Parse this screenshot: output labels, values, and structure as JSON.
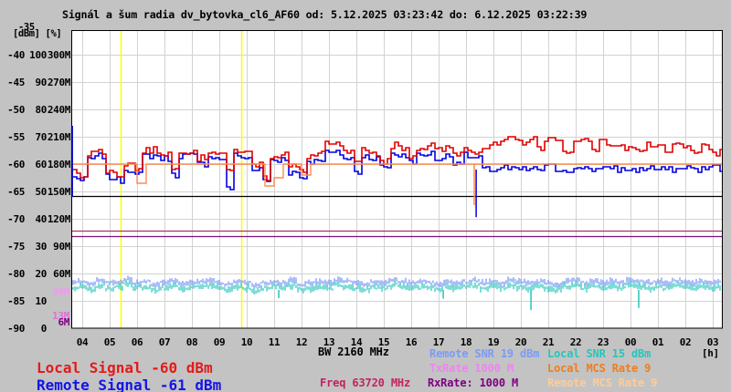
{
  "title": "Signál a šum radia dv_bytovka_cl6_AF60 od: 5.12.2025 03:23:42 do: 6.12.2025 03:22:39",
  "y_axis": {
    "top_overlap_tick": "-35",
    "unit_label": "[dBm] [%]",
    "rows": [
      {
        "dbm": "-40",
        "pct": "100",
        "rate": "300M"
      },
      {
        "dbm": "-45",
        "pct": "90",
        "rate": "270M"
      },
      {
        "dbm": "-50",
        "pct": "80",
        "rate": "240M"
      },
      {
        "dbm": "-55",
        "pct": "70",
        "rate": "210M"
      },
      {
        "dbm": "-60",
        "pct": "60",
        "rate": "180M"
      },
      {
        "dbm": "-65",
        "pct": "50",
        "rate": "150M"
      },
      {
        "dbm": "-70",
        "pct": "40",
        "rate": "120M"
      },
      {
        "dbm": "-75",
        "pct": "30",
        "rate": "90M"
      },
      {
        "dbm": "-80",
        "pct": "20",
        "rate": "60M"
      },
      {
        "dbm": "-85",
        "pct": "10",
        "rate": ""
      },
      {
        "dbm": "-90",
        "pct": "0",
        "rate": ""
      }
    ],
    "rate_side_ticks": [
      {
        "label": "39M",
        "m": 39,
        "color": "#ee9aee"
      },
      {
        "label": "13M",
        "m": 13,
        "color": "#e06fd8"
      },
      {
        "label": "6M",
        "m": 6,
        "color": "#800080"
      }
    ]
  },
  "x_axis": {
    "hours": [
      "04",
      "05",
      "06",
      "07",
      "08",
      "09",
      "10",
      "11",
      "12",
      "13",
      "14",
      "15",
      "16",
      "17",
      "18",
      "19",
      "20",
      "21",
      "22",
      "23",
      "00",
      "01",
      "02",
      "03"
    ],
    "unit": "[h]"
  },
  "legend": {
    "local_signal": {
      "text": "Local Signal -60 dBm",
      "color": "#e31b1b"
    },
    "remote_signal": {
      "text": "Remote Signal -61 dBm",
      "color": "#1414e8"
    },
    "bw": {
      "text": "BW 2160 MHz",
      "color": "#000000"
    },
    "freq": {
      "text": "Freq 63720 MHz",
      "color": "#c22360"
    },
    "remote_snr": {
      "text": "Remote SNR 19 dBm",
      "color": "#7b9bf5"
    },
    "txrate": {
      "text": "TxRate 1000 M",
      "color": "#ee85ee"
    },
    "rxrate": {
      "text": "RxRate: 1000 M",
      "color": "#800080"
    },
    "local_snr": {
      "text": "Local SNR 15 dBm",
      "color": "#26c6b8"
    },
    "local_mcs": {
      "text": "Local MCS Rate 9",
      "color": "#f07d1a"
    },
    "remote_mcs": {
      "text": "Remote MCS Rate 9",
      "color": "#ffcc99"
    }
  },
  "chart_data": {
    "type": "line",
    "title": "Signál a šum radia dv_bytovka_cl6_AF60",
    "ylim_dbm": [
      -90,
      -35
    ],
    "ylim_pct": [
      0,
      100
    ],
    "ylim_rate_m": [
      0,
      300
    ],
    "x_hours_start": 3.667,
    "x_hours_step": 0.3333,
    "grid": true,
    "series": [
      {
        "name": "local_signal",
        "legend": "Local Signal -60 dBm",
        "axis": "dbm",
        "color": "#e10000",
        "values": [
          -61.5,
          -62,
          -58,
          -57.5,
          -61.5,
          -62,
          -60,
          -61,
          -57.5,
          -57.5,
          -58,
          -61,
          -57.5,
          -57.5,
          -59,
          -57.5,
          -58,
          -61.5,
          -57.5,
          -58,
          -60,
          -62.5,
          -58.5,
          -58,
          -60.5,
          -61.5,
          -58.5,
          -58,
          -56.5,
          -56.5,
          -58,
          -60,
          -57.5,
          -58,
          -59.5,
          -56.5,
          -57,
          -58.5,
          -57,
          -56.5,
          -57.5,
          -57,
          -58,
          -57,
          -57.5,
          -57,
          -56.5,
          -56,
          -55.5,
          -56,
          -55.5,
          -57,
          -55.5,
          -56,
          -57.5,
          -56,
          -55.5,
          -57,
          -56,
          -56.5,
          -57,
          -56.5,
          -57.5,
          -56.5,
          -57,
          -58,
          -56.5,
          -57,
          -57.5,
          -57,
          -58,
          -57.5
        ]
      },
      {
        "name": "remote_signal",
        "legend": "Remote Signal -61 dBm",
        "axis": "dbm",
        "color": "#0000e1",
        "values": [
          -62.5,
          -63,
          -59,
          -58.5,
          -62.5,
          -63,
          -61,
          -62,
          -58.5,
          -58.5,
          -59,
          -62,
          -58.5,
          -58.5,
          -60,
          -58.5,
          -59,
          -64.5,
          -58.5,
          -59,
          -61,
          -63,
          -59.5,
          -59,
          -61.5,
          -62.5,
          -59.5,
          -59,
          -58,
          -58,
          -59,
          -61.5,
          -58.5,
          -59,
          -60.5,
          -58,
          -58.5,
          -59.5,
          -58.5,
          -58,
          -59,
          -58.5,
          -59.5,
          -58.5,
          -59,
          -61,
          -61,
          -60.5,
          -61,
          -61,
          -61,
          -61,
          -60.5,
          -61,
          -61,
          -61,
          -60.5,
          -61,
          -61,
          -60.5,
          -61,
          -61,
          -61,
          -60.5,
          -61,
          -61,
          -61,
          -60.5,
          -61,
          -61,
          -60.5,
          -61
        ]
      },
      {
        "name": "local_mcs_rate",
        "legend": "Local MCS Rate 9",
        "axis": "dbm",
        "color": "#ff8c4d",
        "values": [
          -60,
          -60,
          -60,
          -60,
          -60,
          -60,
          -60,
          -63.5,
          -60,
          -60,
          -60,
          -60,
          -60,
          -60,
          -60,
          -60,
          -60,
          -60,
          -60,
          -60,
          -60,
          -64,
          -62.5,
          -60,
          -60,
          -62,
          -60,
          -60,
          -60,
          -60,
          -60,
          -60,
          -60,
          -60,
          -60,
          -60,
          -60,
          -60,
          -60,
          -60,
          -60,
          -60,
          -60,
          -60,
          -60,
          -60,
          -60,
          -60,
          -60,
          -60,
          -60,
          -60,
          -60,
          -60,
          -60,
          -60,
          -60,
          -60,
          -60,
          -60,
          -60,
          -60,
          -60,
          -60,
          -60,
          -60,
          -60,
          -60,
          -60,
          -60,
          -60,
          -60
        ]
      },
      {
        "name": "remote_snr",
        "legend": "Remote SNR 19 dBm",
        "axis": "pct",
        "color": "#7b9bf5",
        "values": [
          16.5,
          17,
          16,
          17.5,
          16.5,
          17,
          18,
          16.5,
          17,
          16,
          16.5,
          17.5,
          16,
          16.5,
          17,
          17.5,
          16.5,
          16,
          17,
          16.5,
          15.5,
          16.5,
          17,
          16.5,
          17.5,
          16,
          16.5,
          17,
          16.5,
          17.5,
          17,
          16.5,
          16,
          17,
          16.5,
          17.5,
          17,
          16.5,
          17,
          16.5,
          16,
          17,
          16.5,
          17,
          17.5,
          16.5,
          17,
          16.5,
          17.5,
          17,
          16.5,
          17,
          16.5,
          16,
          17,
          17.5,
          16.5,
          17,
          16.5,
          17,
          16.5,
          17.5,
          17,
          16.5,
          17,
          16.5,
          17.5,
          17,
          16.5,
          17,
          16.5,
          17
        ]
      },
      {
        "name": "local_snr",
        "legend": "Local SNR 15 dBm",
        "axis": "pct",
        "color": "#26c6b8",
        "values": [
          15,
          15.5,
          14.5,
          16,
          15,
          15.5,
          16.5,
          15,
          15.5,
          14.5,
          15,
          16,
          14.5,
          15,
          15.5,
          16,
          15,
          14.5,
          15.5,
          15,
          14,
          15,
          15.5,
          15,
          16,
          14.5,
          15,
          15.5,
          15,
          16,
          15.5,
          15,
          14.5,
          15.5,
          15,
          16,
          15.5,
          15,
          15.5,
          15,
          14.5,
          15.5,
          15,
          15.5,
          16,
          15,
          15.5,
          15,
          16,
          15.5,
          15,
          15.5,
          15,
          14.5,
          15.5,
          16,
          15,
          15.5,
          15,
          15.5,
          15,
          16,
          15.5,
          15,
          15.5,
          15,
          16,
          15.5,
          15,
          15.5,
          15,
          15.5
        ]
      }
    ],
    "h_lines": [
      {
        "rate_m": 145,
        "color": "#000000"
      },
      {
        "rate_m": 107,
        "color": "#b03060"
      },
      {
        "rate_m": 101,
        "color": "#7a117a"
      }
    ],
    "event_lines": {
      "color": "#ffff00",
      "hours": [
        5.4,
        9.8
      ]
    },
    "spikes": [
      {
        "series": "local_mcs_rate",
        "hour": 18.3,
        "axis": "dbm",
        "from": -60,
        "to": -67.5,
        "color": "#ff8c4d"
      },
      {
        "series": "remote_signal",
        "hour": 18.37,
        "axis": "dbm",
        "from": -61,
        "to": -69.7,
        "color": "#0000e1"
      },
      {
        "series": "local_snr",
        "hour": 11.17,
        "axis": "pct",
        "from": 14,
        "to": 11,
        "color": "#26c6b8"
      },
      {
        "series": "local_snr",
        "hour": 17.17,
        "axis": "pct",
        "from": 14,
        "to": 10.8,
        "color": "#26c6b8"
      },
      {
        "series": "local_snr",
        "hour": 20.37,
        "axis": "pct",
        "from": 14,
        "to": 6.6,
        "color": "#26c6b8"
      },
      {
        "series": "local_snr",
        "hour": 24.3,
        "axis": "pct",
        "from": 14,
        "to": 7.4,
        "color": "#26c6b8"
      }
    ],
    "startup_spike": {
      "hour": 3.63,
      "axis": "dbm",
      "from": -53,
      "to": -66,
      "color": "#0000bb"
    }
  }
}
